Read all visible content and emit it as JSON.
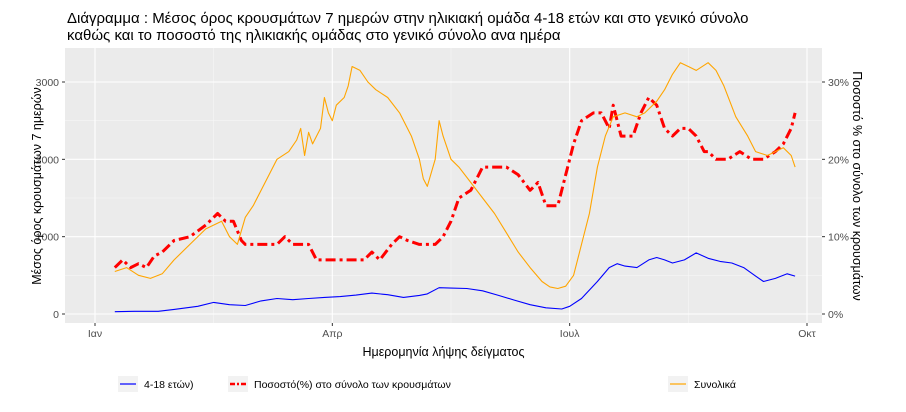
{
  "title": {
    "line1": "Διάγραμμα    : Μέσος όρος κρουσμάτων 7 ημερών στην ηλικιακή ομάδα 4-18 ετών και στο γενικό σύνολο",
    "line2": "καθώς και το ποσοστό της ηλικιακής ομάδας στο γενικό σύνολο ανα ημέρα"
  },
  "chart_data": {
    "type": "line",
    "xlabel": "Ημερομηνία λήψης δείγματος",
    "ylabel": "Μέσος όρος κρουσμάτων 7 ημερών",
    "ylabel_right": "Ποσοστό % στο σύνολο των κρουσμάτων",
    "x_ticks": [
      {
        "label": "Ιαν",
        "month": 0
      },
      {
        "label": "Απρ",
        "month": 3
      },
      {
        "label": "Ιουλ",
        "month": 6
      },
      {
        "label": "Οκτ",
        "month": 9
      }
    ],
    "x_range_months": [
      0,
      9
    ],
    "ylim": [
      0,
      3300
    ],
    "yticks": [
      0,
      1000,
      2000,
      3000
    ],
    "ylim_right": [
      0,
      33
    ],
    "yticks_right": [
      "0%",
      "10%",
      "20%",
      "30%"
    ],
    "grid": true,
    "legend_position": "bottom",
    "series": [
      {
        "name": "4-18 ετών)",
        "axis": "left",
        "color": "#0000ff",
        "points": [
          [
            0.25,
            30
          ],
          [
            0.5,
            35
          ],
          [
            0.8,
            35
          ],
          [
            1.0,
            60
          ],
          [
            1.3,
            100
          ],
          [
            1.5,
            150
          ],
          [
            1.7,
            120
          ],
          [
            1.9,
            110
          ],
          [
            2.1,
            170
          ],
          [
            2.3,
            200
          ],
          [
            2.5,
            185
          ],
          [
            2.7,
            200
          ],
          [
            2.9,
            215
          ],
          [
            3.1,
            225
          ],
          [
            3.3,
            245
          ],
          [
            3.5,
            270
          ],
          [
            3.7,
            250
          ],
          [
            3.9,
            215
          ],
          [
            4.1,
            240
          ],
          [
            4.2,
            260
          ],
          [
            4.35,
            340
          ],
          [
            4.5,
            335
          ],
          [
            4.7,
            330
          ],
          [
            4.9,
            300
          ],
          [
            5.1,
            240
          ],
          [
            5.3,
            180
          ],
          [
            5.5,
            120
          ],
          [
            5.7,
            80
          ],
          [
            5.9,
            65
          ],
          [
            6.0,
            100
          ],
          [
            6.15,
            200
          ],
          [
            6.35,
            420
          ],
          [
            6.5,
            600
          ],
          [
            6.6,
            650
          ],
          [
            6.7,
            620
          ],
          [
            6.85,
            600
          ],
          [
            7.0,
            700
          ],
          [
            7.1,
            730
          ],
          [
            7.2,
            700
          ],
          [
            7.3,
            660
          ],
          [
            7.45,
            700
          ],
          [
            7.6,
            790
          ],
          [
            7.75,
            720
          ],
          [
            7.9,
            680
          ],
          [
            8.05,
            660
          ],
          [
            8.2,
            600
          ],
          [
            8.35,
            490
          ],
          [
            8.45,
            420
          ],
          [
            8.6,
            460
          ],
          [
            8.75,
            520
          ],
          [
            8.85,
            490
          ]
        ]
      },
      {
        "name": "Ποσοστό(%) στο σύνολο των κρουσμάτων",
        "axis": "right",
        "color": "#ff0000",
        "points": [
          [
            0.25,
            6
          ],
          [
            0.35,
            7
          ],
          [
            0.45,
            6
          ],
          [
            0.55,
            6.5
          ],
          [
            0.65,
            6
          ],
          [
            0.75,
            7.5
          ],
          [
            0.85,
            8
          ],
          [
            1.0,
            9.5
          ],
          [
            1.2,
            10
          ],
          [
            1.4,
            11.5
          ],
          [
            1.5,
            12.5
          ],
          [
            1.55,
            13
          ],
          [
            1.65,
            12
          ],
          [
            1.75,
            12
          ],
          [
            1.85,
            9.5
          ],
          [
            1.9,
            9
          ],
          [
            2.1,
            9
          ],
          [
            2.3,
            9
          ],
          [
            2.4,
            10
          ],
          [
            2.5,
            9
          ],
          [
            2.7,
            9
          ],
          [
            2.8,
            7
          ],
          [
            3.0,
            7
          ],
          [
            3.2,
            7
          ],
          [
            3.4,
            7
          ],
          [
            3.5,
            8
          ],
          [
            3.6,
            7
          ],
          [
            3.75,
            9
          ],
          [
            3.85,
            10
          ],
          [
            3.95,
            9.5
          ],
          [
            4.1,
            9
          ],
          [
            4.3,
            9
          ],
          [
            4.4,
            10
          ],
          [
            4.5,
            12
          ],
          [
            4.6,
            15
          ],
          [
            4.75,
            16
          ],
          [
            4.85,
            18
          ],
          [
            4.9,
            19
          ],
          [
            5.0,
            19
          ],
          [
            5.2,
            19
          ],
          [
            5.35,
            18
          ],
          [
            5.5,
            16
          ],
          [
            5.6,
            17
          ],
          [
            5.7,
            14
          ],
          [
            5.85,
            14
          ],
          [
            5.95,
            18
          ],
          [
            6.05,
            22
          ],
          [
            6.15,
            25
          ],
          [
            6.3,
            26
          ],
          [
            6.4,
            26
          ],
          [
            6.5,
            24
          ],
          [
            6.55,
            27
          ],
          [
            6.65,
            23
          ],
          [
            6.8,
            23
          ],
          [
            6.9,
            26
          ],
          [
            7.0,
            28
          ],
          [
            7.1,
            27
          ],
          [
            7.2,
            24
          ],
          [
            7.3,
            23
          ],
          [
            7.4,
            24
          ],
          [
            7.5,
            24
          ],
          [
            7.6,
            23
          ],
          [
            7.7,
            21
          ],
          [
            7.75,
            21
          ],
          [
            7.85,
            20
          ],
          [
            8.0,
            20
          ],
          [
            8.15,
            21
          ],
          [
            8.3,
            20
          ],
          [
            8.45,
            20
          ],
          [
            8.6,
            21
          ],
          [
            8.7,
            22
          ],
          [
            8.8,
            24
          ],
          [
            8.85,
            26
          ]
        ]
      },
      {
        "name": "Συνολικά",
        "axis": "left",
        "color": "#ffa500",
        "points": [
          [
            0.25,
            550
          ],
          [
            0.4,
            600
          ],
          [
            0.55,
            500
          ],
          [
            0.7,
            460
          ],
          [
            0.85,
            520
          ],
          [
            1.0,
            700
          ],
          [
            1.2,
            900
          ],
          [
            1.4,
            1100
          ],
          [
            1.6,
            1200
          ],
          [
            1.7,
            1000
          ],
          [
            1.8,
            900
          ],
          [
            1.9,
            1250
          ],
          [
            2.0,
            1400
          ],
          [
            2.15,
            1700
          ],
          [
            2.3,
            2000
          ],
          [
            2.45,
            2100
          ],
          [
            2.55,
            2250
          ],
          [
            2.6,
            2400
          ],
          [
            2.65,
            2050
          ],
          [
            2.7,
            2350
          ],
          [
            2.75,
            2200
          ],
          [
            2.85,
            2400
          ],
          [
            2.9,
            2800
          ],
          [
            2.95,
            2600
          ],
          [
            3.0,
            2500
          ],
          [
            3.05,
            2700
          ],
          [
            3.15,
            2800
          ],
          [
            3.2,
            2950
          ],
          [
            3.25,
            3200
          ],
          [
            3.35,
            3150
          ],
          [
            3.45,
            3000
          ],
          [
            3.55,
            2900
          ],
          [
            3.7,
            2800
          ],
          [
            3.85,
            2600
          ],
          [
            4.0,
            2300
          ],
          [
            4.1,
            2000
          ],
          [
            4.15,
            1750
          ],
          [
            4.2,
            1650
          ],
          [
            4.3,
            2000
          ],
          [
            4.35,
            2500
          ],
          [
            4.4,
            2300
          ],
          [
            4.5,
            2000
          ],
          [
            4.6,
            1900
          ],
          [
            4.75,
            1700
          ],
          [
            4.9,
            1500
          ],
          [
            5.05,
            1300
          ],
          [
            5.2,
            1050
          ],
          [
            5.35,
            800
          ],
          [
            5.5,
            600
          ],
          [
            5.65,
            420
          ],
          [
            5.75,
            350
          ],
          [
            5.85,
            330
          ],
          [
            5.95,
            360
          ],
          [
            6.05,
            500
          ],
          [
            6.15,
            900
          ],
          [
            6.25,
            1300
          ],
          [
            6.35,
            1900
          ],
          [
            6.45,
            2300
          ],
          [
            6.55,
            2550
          ],
          [
            6.7,
            2600
          ],
          [
            6.85,
            2550
          ],
          [
            6.95,
            2600
          ],
          [
            7.1,
            2750
          ],
          [
            7.2,
            2900
          ],
          [
            7.3,
            3100
          ],
          [
            7.4,
            3250
          ],
          [
            7.5,
            3200
          ],
          [
            7.6,
            3150
          ],
          [
            7.75,
            3250
          ],
          [
            7.85,
            3150
          ],
          [
            7.95,
            2950
          ],
          [
            8.1,
            2550
          ],
          [
            8.25,
            2300
          ],
          [
            8.35,
            2100
          ],
          [
            8.5,
            2050
          ],
          [
            8.6,
            2100
          ],
          [
            8.7,
            2150
          ],
          [
            8.8,
            2050
          ],
          [
            8.85,
            1900
          ]
        ]
      }
    ]
  }
}
